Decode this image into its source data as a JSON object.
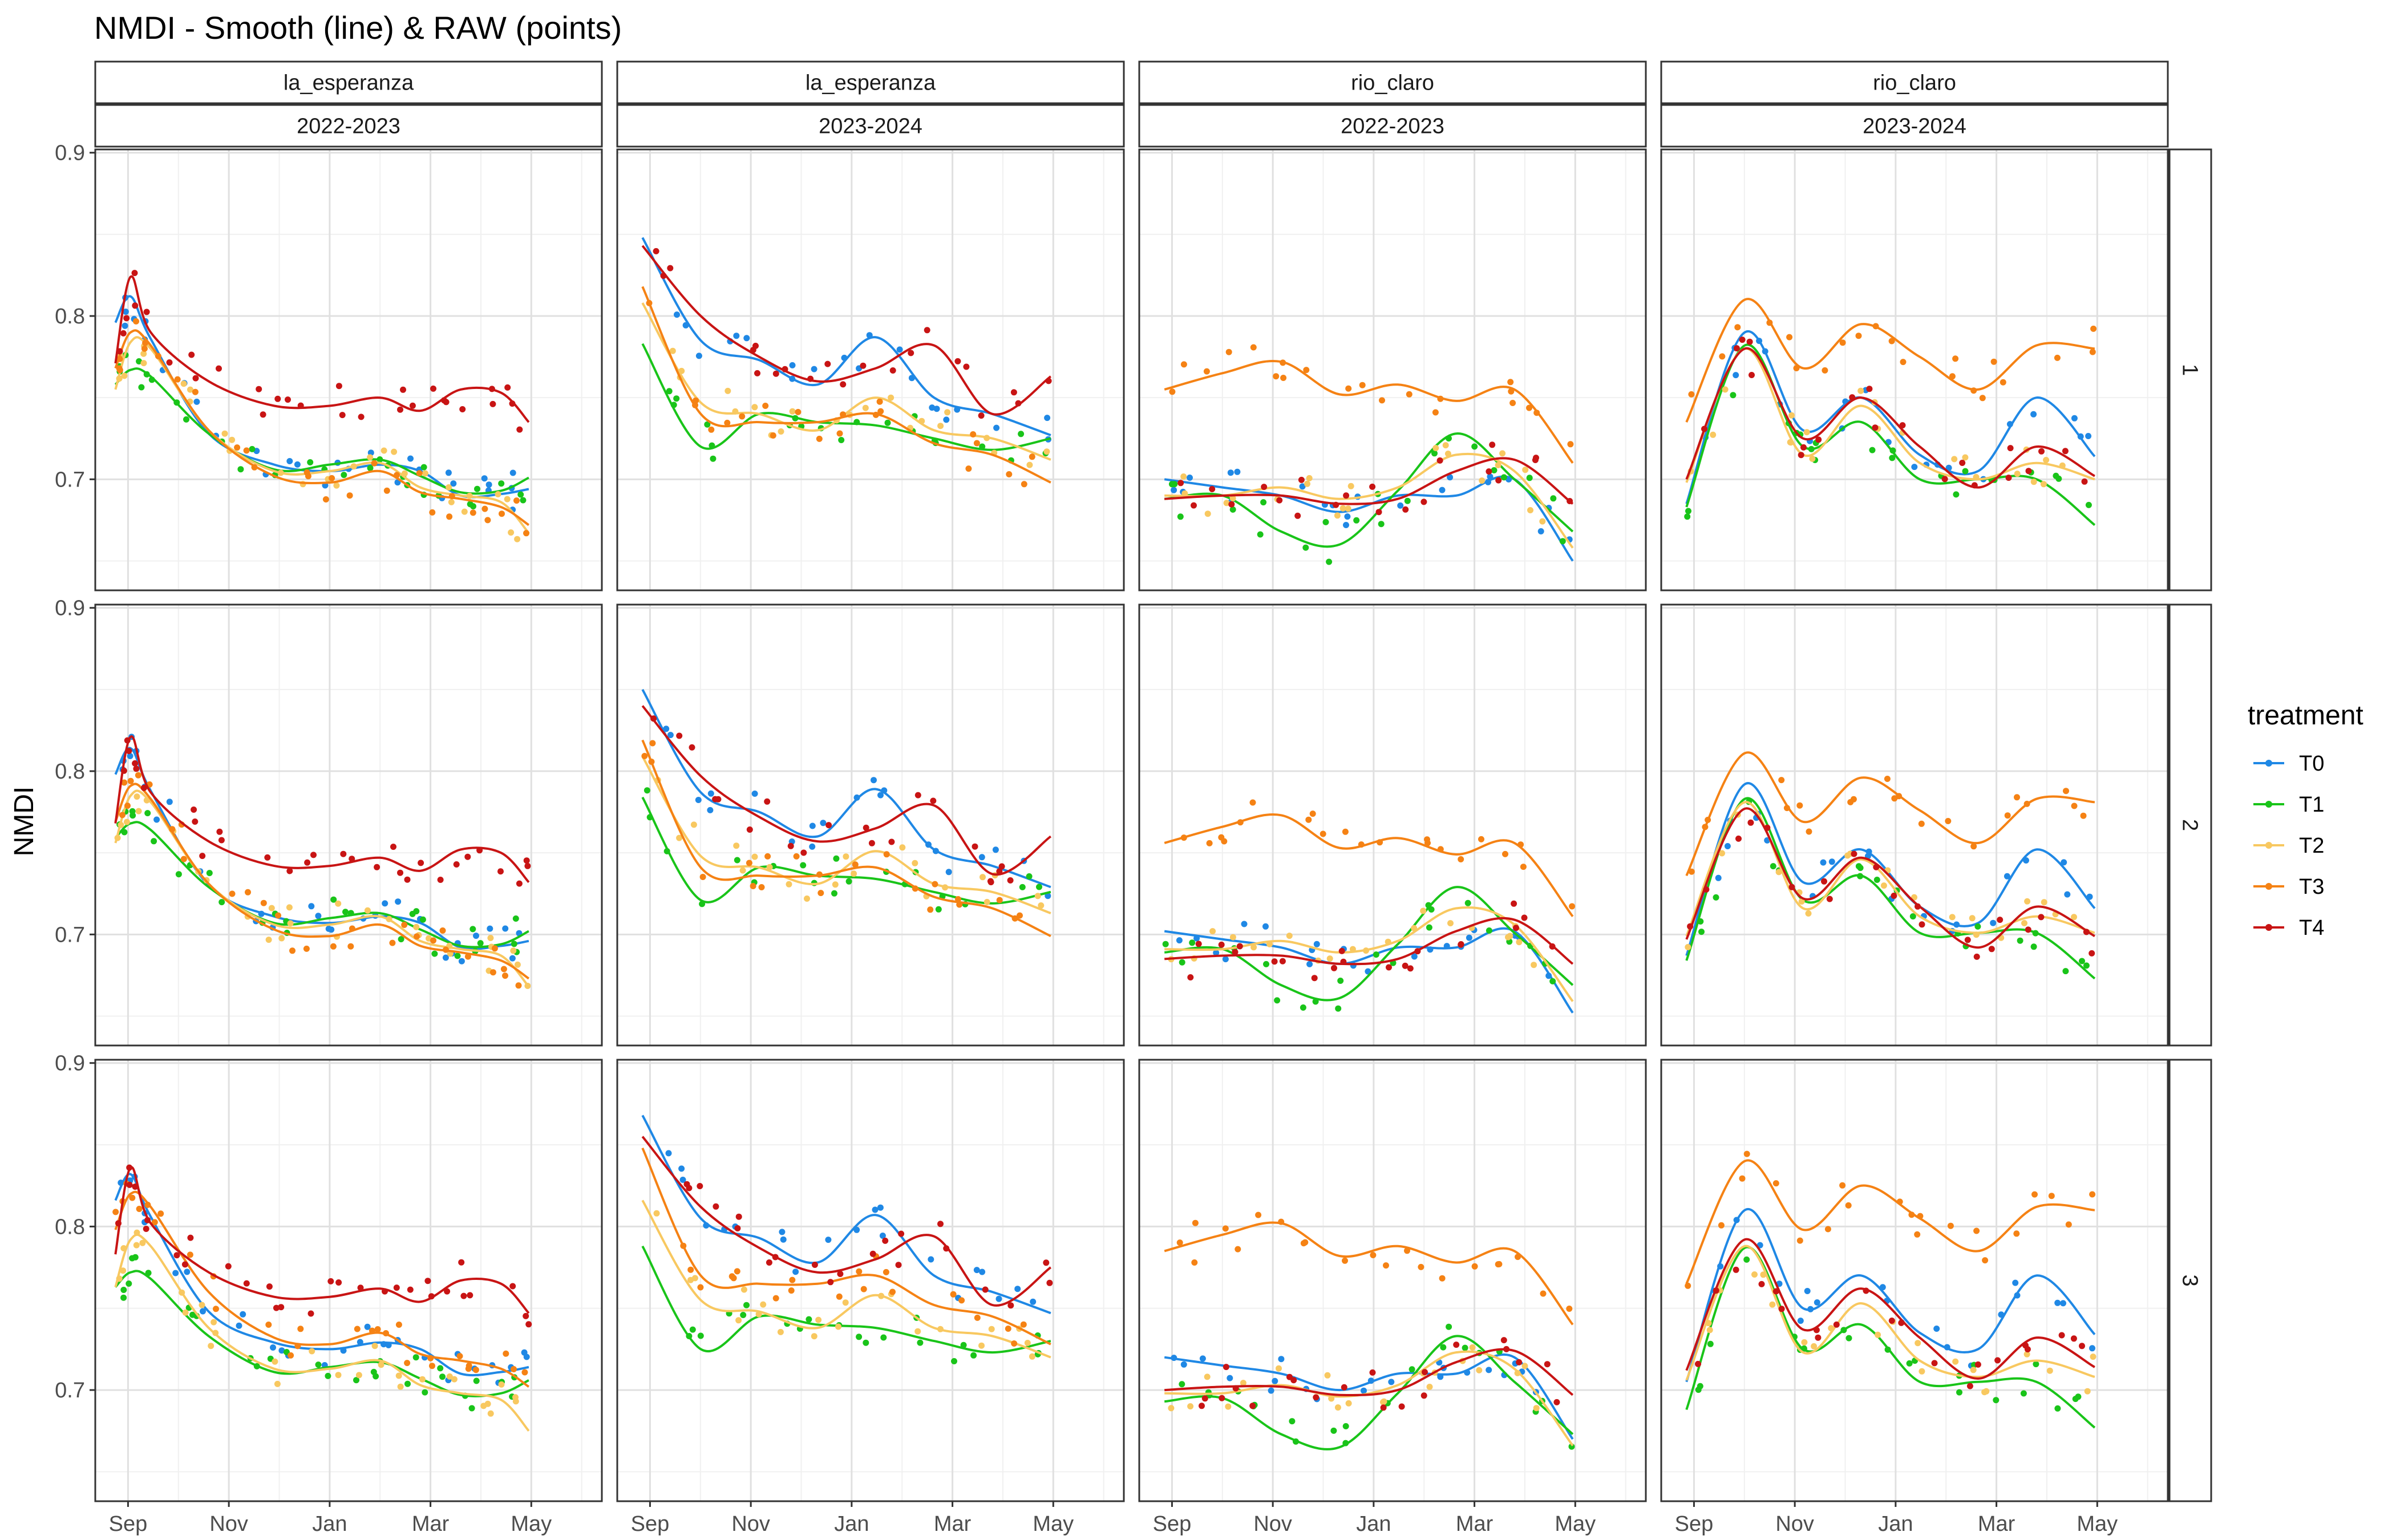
{
  "chart_data": {
    "type": "scatter",
    "title": "NMDI - Smooth (line) & RAW (points)",
    "ylabel": "NMDI",
    "xlabel": "",
    "x_ticks": [
      "Sep",
      "Nov",
      "Jan",
      "Mar",
      "May"
    ],
    "y_ticks": [
      0.7,
      0.8,
      0.9
    ],
    "column_strips": [
      {
        "site": "la_esperanza",
        "season": "2022-2023"
      },
      {
        "site": "la_esperanza",
        "season": "2023-2024"
      },
      {
        "site": "rio_claro",
        "season": "2022-2023"
      },
      {
        "site": "rio_claro",
        "season": "2023-2024"
      }
    ],
    "row_strips": [
      "1",
      "2",
      "3"
    ],
    "legend": {
      "title": "treatment",
      "position": "right",
      "entries": [
        {
          "name": "T0",
          "color": "#1f88e5"
        },
        {
          "name": "T1",
          "color": "#19c419"
        },
        {
          "name": "T2",
          "color": "#f8c860"
        },
        {
          "name": "T3",
          "color": "#f58214"
        },
        {
          "name": "T4",
          "color": "#c81414"
        }
      ]
    },
    "grid": true,
    "smooth_lines": {
      "la_esperanza|2022-2023": {
        "T0": [
          [
            0,
            0.796
          ],
          [
            0.5,
            0.812
          ],
          [
            1,
            0.786
          ],
          [
            2,
            0.728
          ],
          [
            3,
            0.709
          ],
          [
            4,
            0.705
          ],
          [
            5,
            0.709
          ],
          [
            6,
            0.705
          ],
          [
            7,
            0.69
          ],
          [
            8,
            0.691
          ],
          [
            9,
            0.694
          ]
        ],
        "T1": [
          [
            0,
            0.758
          ],
          [
            0.5,
            0.767
          ],
          [
            1,
            0.763
          ],
          [
            2,
            0.728
          ],
          [
            3,
            0.706
          ],
          [
            4,
            0.709
          ],
          [
            5,
            0.712
          ],
          [
            6,
            0.702
          ],
          [
            7,
            0.692
          ],
          [
            8,
            0.693
          ],
          [
            9,
            0.701
          ]
        ],
        "T2": [
          [
            0,
            0.755
          ],
          [
            0.5,
            0.784
          ],
          [
            1,
            0.78
          ],
          [
            2,
            0.73
          ],
          [
            3,
            0.705
          ],
          [
            4,
            0.705
          ],
          [
            5,
            0.71
          ],
          [
            6,
            0.695
          ],
          [
            7,
            0.69
          ],
          [
            8,
            0.686
          ],
          [
            9,
            0.667
          ]
        ],
        "T3": [
          [
            0,
            0.768
          ],
          [
            0.5,
            0.79
          ],
          [
            1,
            0.782
          ],
          [
            2,
            0.73
          ],
          [
            3,
            0.702
          ],
          [
            4,
            0.698
          ],
          [
            5,
            0.705
          ],
          [
            6,
            0.692
          ],
          [
            7,
            0.688
          ],
          [
            8,
            0.683
          ],
          [
            9,
            0.672
          ]
        ],
        "T4": [
          [
            0,
            0.771
          ],
          [
            0.5,
            0.824
          ],
          [
            1,
            0.79
          ],
          [
            2,
            0.76
          ],
          [
            3,
            0.745
          ],
          [
            4,
            0.745
          ],
          [
            5,
            0.75
          ],
          [
            6,
            0.742
          ],
          [
            7,
            0.755
          ],
          [
            8,
            0.753
          ],
          [
            9,
            0.735
          ]
        ]
      },
      "la_esperanza|2023-2024": {
        "T0": [
          [
            0,
            0.848
          ],
          [
            1,
            0.785
          ],
          [
            2,
            0.773
          ],
          [
            3,
            0.758
          ],
          [
            4,
            0.787
          ],
          [
            5,
            0.75
          ],
          [
            6,
            0.74
          ],
          [
            7,
            0.727
          ]
        ],
        "T1": [
          [
            0,
            0.783
          ],
          [
            1,
            0.72
          ],
          [
            2,
            0.74
          ],
          [
            3,
            0.735
          ],
          [
            4,
            0.733
          ],
          [
            5,
            0.725
          ],
          [
            6,
            0.718
          ],
          [
            7,
            0.725
          ]
        ],
        "T2": [
          [
            0,
            0.808
          ],
          [
            1,
            0.747
          ],
          [
            2,
            0.74
          ],
          [
            3,
            0.73
          ],
          [
            4,
            0.75
          ],
          [
            5,
            0.73
          ],
          [
            6,
            0.725
          ],
          [
            7,
            0.712
          ]
        ],
        "T3": [
          [
            0,
            0.818
          ],
          [
            1,
            0.74
          ],
          [
            2,
            0.735
          ],
          [
            3,
            0.735
          ],
          [
            4,
            0.74
          ],
          [
            5,
            0.722
          ],
          [
            6,
            0.715
          ],
          [
            7,
            0.698
          ]
        ],
        "T4": [
          [
            0,
            0.843
          ],
          [
            1,
            0.8
          ],
          [
            2,
            0.775
          ],
          [
            3,
            0.76
          ],
          [
            4,
            0.768
          ],
          [
            5,
            0.782
          ],
          [
            6,
            0.74
          ],
          [
            7,
            0.763
          ]
        ]
      },
      "rio_claro|2022-2023": {
        "T0": [
          [
            0,
            0.7
          ],
          [
            1,
            0.695
          ],
          [
            2,
            0.69
          ],
          [
            3,
            0.68
          ],
          [
            4,
            0.69
          ],
          [
            5,
            0.69
          ],
          [
            6,
            0.7
          ],
          [
            7,
            0.65
          ]
        ],
        "T1": [
          [
            0,
            0.688
          ],
          [
            1,
            0.69
          ],
          [
            2,
            0.668
          ],
          [
            3,
            0.66
          ],
          [
            4,
            0.693
          ],
          [
            5,
            0.728
          ],
          [
            6,
            0.7
          ],
          [
            7,
            0.668
          ]
        ],
        "T2": [
          [
            0,
            0.69
          ],
          [
            1,
            0.69
          ],
          [
            2,
            0.695
          ],
          [
            3,
            0.688
          ],
          [
            4,
            0.695
          ],
          [
            5,
            0.715
          ],
          [
            6,
            0.705
          ],
          [
            7,
            0.658
          ]
        ],
        "T3": [
          [
            0,
            0.755
          ],
          [
            1,
            0.765
          ],
          [
            2,
            0.772
          ],
          [
            3,
            0.752
          ],
          [
            4,
            0.758
          ],
          [
            5,
            0.748
          ],
          [
            6,
            0.755
          ],
          [
            7,
            0.71
          ]
        ],
        "T4": [
          [
            0,
            0.688
          ],
          [
            1,
            0.69
          ],
          [
            2,
            0.69
          ],
          [
            3,
            0.685
          ],
          [
            4,
            0.688
          ],
          [
            5,
            0.705
          ],
          [
            6,
            0.712
          ],
          [
            7,
            0.685
          ]
        ]
      },
      "rio_claro|2023-2024": {
        "T0": [
          [
            0,
            0.685
          ],
          [
            1,
            0.79
          ],
          [
            2,
            0.73
          ],
          [
            3,
            0.75
          ],
          [
            4,
            0.715
          ],
          [
            5,
            0.705
          ],
          [
            6,
            0.75
          ],
          [
            7,
            0.714
          ]
        ],
        "T1": [
          [
            0,
            0.683
          ],
          [
            1,
            0.782
          ],
          [
            2,
            0.72
          ],
          [
            3,
            0.735
          ],
          [
            4,
            0.7
          ],
          [
            5,
            0.7
          ],
          [
            6,
            0.7
          ],
          [
            7,
            0.672
          ]
        ],
        "T2": [
          [
            0,
            0.698
          ],
          [
            1,
            0.78
          ],
          [
            2,
            0.715
          ],
          [
            3,
            0.745
          ],
          [
            4,
            0.71
          ],
          [
            5,
            0.7
          ],
          [
            6,
            0.71
          ],
          [
            7,
            0.7
          ]
        ],
        "T3": [
          [
            0,
            0.735
          ],
          [
            1,
            0.81
          ],
          [
            2,
            0.768
          ],
          [
            3,
            0.795
          ],
          [
            4,
            0.775
          ],
          [
            5,
            0.755
          ],
          [
            6,
            0.782
          ],
          [
            7,
            0.78
          ]
        ],
        "T4": [
          [
            0,
            0.7
          ],
          [
            1,
            0.78
          ],
          [
            2,
            0.725
          ],
          [
            3,
            0.75
          ],
          [
            4,
            0.72
          ],
          [
            5,
            0.695
          ],
          [
            6,
            0.72
          ],
          [
            7,
            0.702
          ]
        ]
      }
    },
    "row_offsets": {
      "1": {
        "T0": 0,
        "T1": 0,
        "T2": 0,
        "T3": 0,
        "T4": 0
      },
      "2": {
        "T0": 0.002,
        "T1": 0.001,
        "T2": 0.001,
        "T3": 0.001,
        "T4": -0.003
      },
      "3": {
        "T0": 0.02,
        "T1": 0.005,
        "T2": 0.008,
        "T3": 0.03,
        "T4": 0.012
      }
    },
    "raw_points_note_free": true
  }
}
